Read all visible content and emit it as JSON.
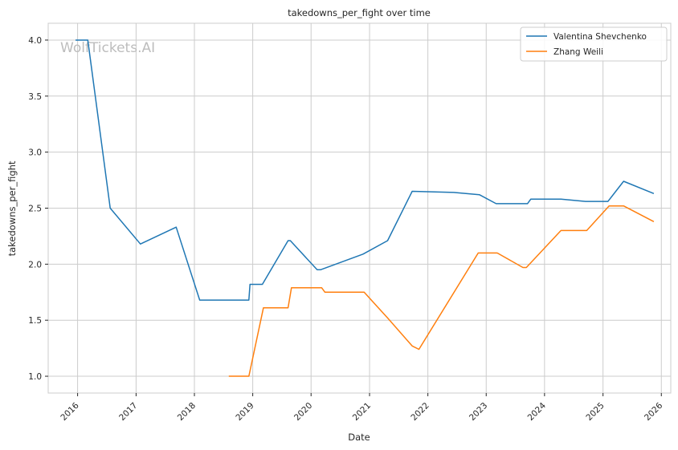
{
  "chart_data": {
    "type": "line",
    "title": "takedowns_per_fight over time",
    "xlabel": "Date",
    "ylabel": "takedowns_per_fight",
    "watermark": "WolfTickets.AI",
    "xlim": [
      "2015-07-01",
      "2026-03-01"
    ],
    "ylim": [
      0.85,
      4.15
    ],
    "x_ticks": [
      "2016",
      "2017",
      "2018",
      "2019",
      "2020",
      "2021",
      "2022",
      "2023",
      "2024",
      "2025",
      "2026"
    ],
    "y_ticks": [
      "1.0",
      "1.5",
      "2.0",
      "2.5",
      "3.0",
      "3.5",
      "4.0"
    ],
    "grid": true,
    "legend_position": "top-right",
    "series": [
      {
        "name": "Valentina Shevchenko",
        "color": "#1f77b4",
        "points": [
          [
            "2015-12-19",
            4.0
          ],
          [
            "2016-03-05",
            4.0
          ],
          [
            "2016-07-23",
            2.5
          ],
          [
            "2017-01-28",
            2.18
          ],
          [
            "2017-09-09",
            2.33
          ],
          [
            "2018-02-03",
            1.68
          ],
          [
            "2018-12-08",
            1.68
          ],
          [
            "2018-12-15",
            1.82
          ],
          [
            "2019-03-02",
            1.82
          ],
          [
            "2019-08-10",
            2.21
          ],
          [
            "2019-08-24",
            2.21
          ],
          [
            "2020-02-08",
            1.95
          ],
          [
            "2020-02-29",
            1.95
          ],
          [
            "2020-11-21",
            2.09
          ],
          [
            "2021-04-24",
            2.21
          ],
          [
            "2021-09-25",
            2.65
          ],
          [
            "2022-06-11",
            2.64
          ],
          [
            "2022-11-19",
            2.62
          ],
          [
            "2023-03-04",
            2.54
          ],
          [
            "2023-09-16",
            2.54
          ],
          [
            "2023-10-07",
            2.58
          ],
          [
            "2024-04-13",
            2.58
          ],
          [
            "2024-09-14",
            2.56
          ],
          [
            "2025-02-01",
            2.56
          ],
          [
            "2025-05-10",
            2.74
          ],
          [
            "2025-11-15",
            2.63
          ]
        ]
      },
      {
        "name": "Zhang Weili",
        "color": "#ff7f0e",
        "points": [
          [
            "2018-08-04",
            1.0
          ],
          [
            "2018-12-08",
            1.0
          ],
          [
            "2019-03-09",
            1.61
          ],
          [
            "2019-08-10",
            1.61
          ],
          [
            "2019-08-31",
            1.79
          ],
          [
            "2020-03-07",
            1.79
          ],
          [
            "2020-03-28",
            1.75
          ],
          [
            "2020-11-28",
            1.75
          ],
          [
            "2021-04-24",
            1.52
          ],
          [
            "2021-09-25",
            1.27
          ],
          [
            "2021-11-06",
            1.24
          ],
          [
            "2022-11-12",
            2.1
          ],
          [
            "2023-03-11",
            2.1
          ],
          [
            "2023-08-19",
            1.97
          ],
          [
            "2023-09-09",
            1.97
          ],
          [
            "2024-04-13",
            2.3
          ],
          [
            "2024-09-21",
            2.3
          ],
          [
            "2025-02-08",
            2.52
          ],
          [
            "2025-05-10",
            2.52
          ],
          [
            "2025-11-15",
            2.38
          ]
        ]
      }
    ]
  }
}
